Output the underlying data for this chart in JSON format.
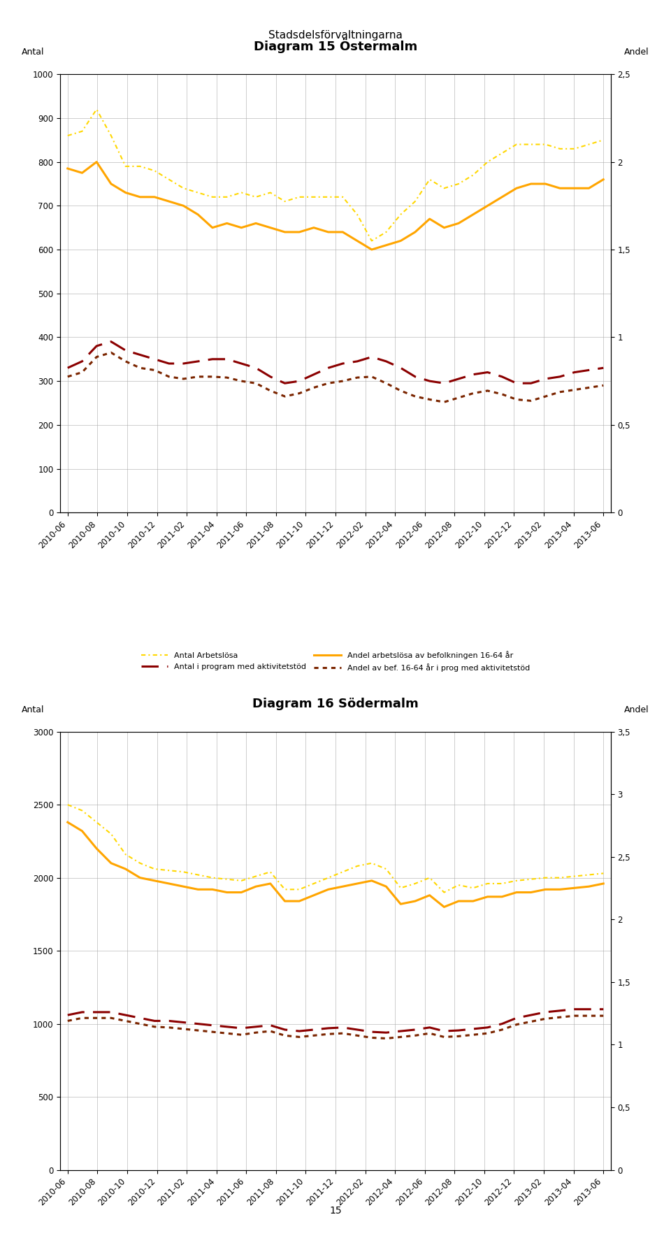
{
  "page_title": "Stadsdelsförvaltningarna",
  "page_number": "15",
  "chart1": {
    "title": "Diagram 15 Östermalm",
    "ylabel_left": "Antal",
    "ylabel_right": "Andel",
    "ylim_left": [
      0,
      1000
    ],
    "ylim_right": [
      0,
      2.5
    ],
    "yticks_left": [
      0,
      100,
      200,
      300,
      400,
      500,
      600,
      700,
      800,
      900,
      1000
    ],
    "yticks_right": [
      0,
      0.5,
      1.0,
      1.5,
      2.0,
      2.5
    ],
    "ytick_right_labels": [
      "0",
      "0,5",
      "1",
      "1,5",
      "2",
      "2,5"
    ],
    "antal_arbetslosa": [
      860,
      870,
      920,
      860,
      790,
      790,
      780,
      760,
      740,
      730,
      720,
      720,
      730,
      720,
      730,
      710,
      720,
      720,
      720,
      720,
      680,
      620,
      640,
      680,
      710,
      760,
      740,
      750,
      770,
      800,
      820,
      840,
      840,
      840,
      830,
      830,
      840,
      850
    ],
    "andel_arbetslosa": [
      785,
      775,
      800,
      750,
      730,
      720,
      720,
      710,
      700,
      680,
      650,
      660,
      650,
      660,
      650,
      640,
      640,
      650,
      640,
      640,
      620,
      600,
      610,
      620,
      640,
      670,
      650,
      660,
      680,
      700,
      720,
      740,
      750,
      750,
      740,
      740,
      740,
      760
    ],
    "antal_prog": [
      330,
      345,
      380,
      390,
      370,
      360,
      350,
      340,
      340,
      345,
      350,
      350,
      340,
      330,
      310,
      295,
      300,
      315,
      330,
      340,
      345,
      355,
      345,
      330,
      310,
      300,
      295,
      305,
      315,
      320,
      310,
      295,
      295,
      305,
      310,
      320,
      325,
      330
    ],
    "andel_bef": [
      310,
      320,
      355,
      365,
      345,
      330,
      325,
      310,
      305,
      310,
      310,
      308,
      300,
      295,
      278,
      265,
      272,
      285,
      295,
      300,
      308,
      310,
      295,
      278,
      265,
      258,
      252,
      262,
      272,
      278,
      270,
      258,
      255,
      265,
      275,
      280,
      285,
      290
    ]
  },
  "chart2": {
    "title": "Diagram 16 Södermalm",
    "ylabel_left": "Antal",
    "ylabel_right": "Andel",
    "ylim_left": [
      0,
      3000
    ],
    "ylim_right": [
      0,
      3.5
    ],
    "yticks_left": [
      0,
      500,
      1000,
      1500,
      2000,
      2500,
      3000
    ],
    "yticks_right": [
      0,
      0.5,
      1.0,
      1.5,
      2.0,
      2.5,
      3.0,
      3.5
    ],
    "ytick_right_labels": [
      "0",
      "0,5",
      "1",
      "1,5",
      "2",
      "2,5",
      "3",
      "3,5"
    ],
    "antal_arbetslosa": [
      2500,
      2460,
      2380,
      2300,
      2160,
      2100,
      2060,
      2050,
      2040,
      2020,
      2000,
      1990,
      1980,
      2010,
      2040,
      1920,
      1920,
      1960,
      2000,
      2040,
      2080,
      2100,
      2060,
      1930,
      1960,
      2000,
      1900,
      1950,
      1930,
      1960,
      1960,
      1980,
      1990,
      2000,
      2000,
      2010,
      2020,
      2030
    ],
    "andel_arbetslosa": [
      2380,
      2320,
      2200,
      2100,
      2060,
      2000,
      1980,
      1960,
      1940,
      1920,
      1920,
      1900,
      1900,
      1940,
      1960,
      1840,
      1840,
      1880,
      1920,
      1940,
      1960,
      1980,
      1940,
      1820,
      1840,
      1880,
      1800,
      1840,
      1840,
      1870,
      1870,
      1900,
      1900,
      1920,
      1920,
      1930,
      1940,
      1960
    ],
    "antal_prog": [
      1060,
      1080,
      1080,
      1080,
      1060,
      1040,
      1020,
      1020,
      1010,
      1000,
      990,
      980,
      970,
      980,
      990,
      960,
      950,
      960,
      970,
      975,
      960,
      945,
      940,
      950,
      960,
      975,
      950,
      955,
      965,
      975,
      1000,
      1040,
      1060,
      1080,
      1090,
      1100,
      1100,
      1100
    ],
    "andel_bef": [
      1020,
      1040,
      1040,
      1040,
      1020,
      1000,
      980,
      975,
      965,
      955,
      945,
      935,
      925,
      940,
      950,
      920,
      910,
      920,
      930,
      935,
      920,
      905,
      900,
      910,
      920,
      935,
      910,
      915,
      925,
      935,
      960,
      995,
      1015,
      1035,
      1045,
      1055,
      1055,
      1055
    ]
  },
  "x_labels": [
    "2010-06",
    "2010-08",
    "2010-10",
    "2010-12",
    "2011-02",
    "2011-04",
    "2011-06",
    "2011-08",
    "2011-10",
    "2011-12",
    "2012-02",
    "2012-04",
    "2012-06",
    "2012-08",
    "2012-10",
    "2012-12",
    "2013-02",
    "2013-04",
    "2013-06"
  ],
  "colors": {
    "antal_arbetslosa": "#FFD700",
    "andel_arbetslosa": "#FFA500",
    "antal_prog": "#8B0000",
    "andel_bef": "#7B2500"
  },
  "legend": {
    "antal_arbetslosa": "Antal Arbetslösa",
    "andel_arbetslosa": "Andel arbetslösa av befolkningen 16-64 år",
    "antal_prog": "Antal i program med aktivitetstöd",
    "andel_bef": "Andel av bef. 16-64 år i prog med aktivitetstöd"
  }
}
